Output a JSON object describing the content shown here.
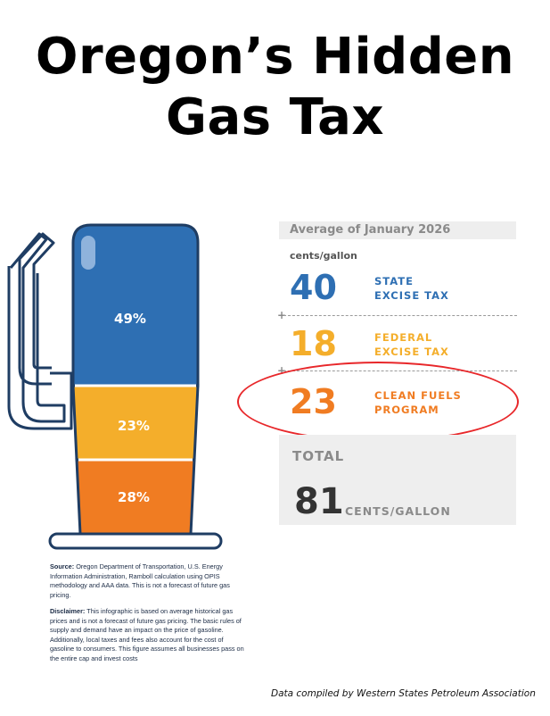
{
  "title_line1": "Oregon’s Hidden",
  "title_line2": "Gas Tax",
  "pump": {
    "segments": [
      {
        "label": "49%",
        "share": 0.49,
        "color": "#2e6fb3"
      },
      {
        "label": "23%",
        "share": 0.23,
        "color": "#f4ae2b"
      },
      {
        "label": "28%",
        "share": 0.28,
        "color": "#f07c22"
      }
    ],
    "outline_color": "#1f3d63"
  },
  "panel": {
    "heading": "Average of January 2026",
    "unit": "cents/gallon",
    "rows": [
      {
        "value": "40",
        "label_line1": "STATE",
        "label_line2": "EXCISE TAX",
        "color": "#2e6fb3"
      },
      {
        "value": "18",
        "label_line1": "FEDERAL",
        "label_line2": "EXCISE TAX",
        "color": "#f4ae2b"
      },
      {
        "value": "23",
        "label_line1": "CLEAN FUELS",
        "label_line2": "PROGRAM",
        "color": "#f07c22"
      }
    ],
    "plus_sign": "+",
    "total_label": "TOTAL",
    "total_value": "81",
    "total_unit": "CENTS/GALLON"
  },
  "notes": {
    "source_heading": "Source:",
    "source_text": "Oregon Department of Transportation, U.S. Energy Information Administration, Ramboll calculation using OPIS methodology and AAA data. This is not a forecast of future gas pricing.",
    "disclaimer_heading": "Disclaimer:",
    "disclaimer_text": "This infographic is based on average historical gas prices and is not a forecast of future gas pricing. The basic rules of supply and demand have an impact on the price of gasoline. Additionally, local taxes and fees also account for the cost of gasoline to consumers. This figure assumes all businesses pass on the entire cap and invest costs"
  },
  "credit": "Data compiled by Western States Petroleum Association",
  "highlight_color": "#e8272a"
}
